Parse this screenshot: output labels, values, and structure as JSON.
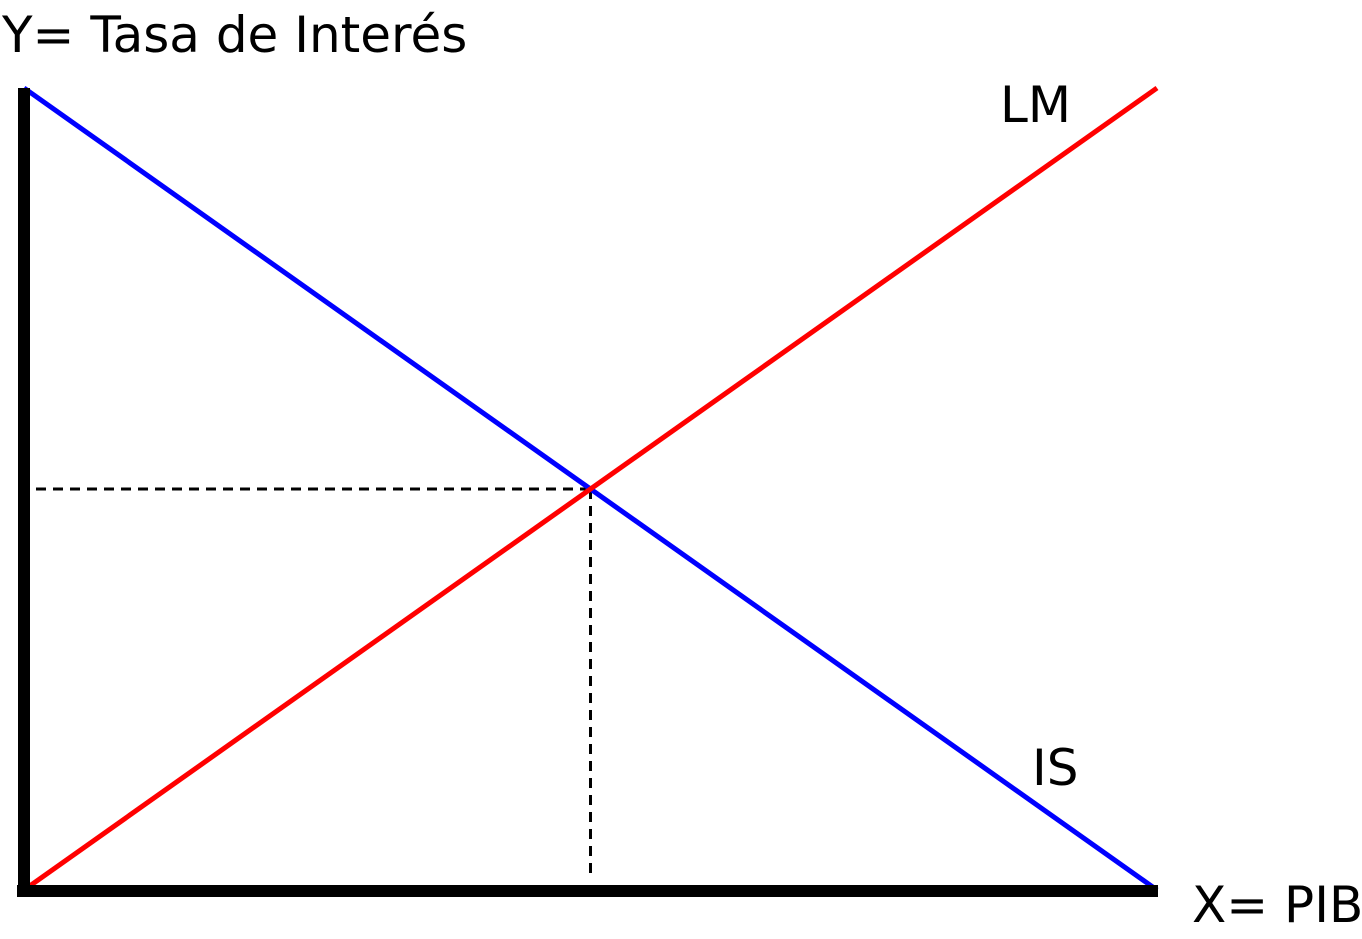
{
  "chart_data": {
    "type": "line",
    "title": "",
    "ylabel": "Y= Tasa de Interés",
    "xlabel": "X= PIB",
    "xlim": [
      0,
      100
    ],
    "ylim": [
      0,
      100
    ],
    "grid": false,
    "series": [
      {
        "name": "IS",
        "label": "IS",
        "color": "#0000ff",
        "x": [
          0,
          100
        ],
        "y": [
          100,
          0
        ]
      },
      {
        "name": "LM",
        "label": "LM",
        "color": "#ff0000",
        "x": [
          0,
          100
        ],
        "y": [
          0,
          100
        ]
      }
    ],
    "equilibrium": {
      "x": 50,
      "y": 50
    },
    "axis_color": "#000000",
    "guide_color": "#000000"
  }
}
